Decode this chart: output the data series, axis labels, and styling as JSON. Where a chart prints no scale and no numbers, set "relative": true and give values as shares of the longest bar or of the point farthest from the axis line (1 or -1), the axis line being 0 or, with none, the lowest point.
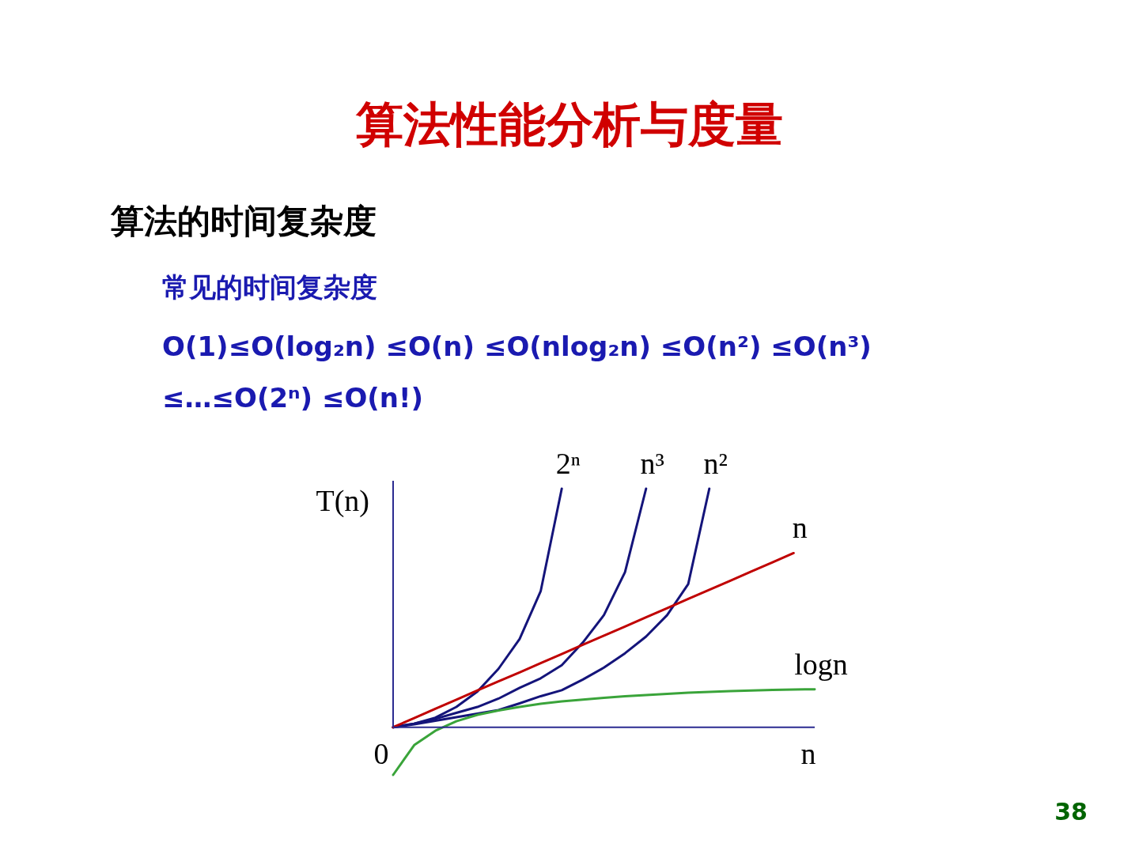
{
  "chart_data": {
    "type": "line",
    "relative": true,
    "title": "算法性能分析与度量",
    "subtitle": "算法的时间复杂度",
    "ylabel": "T(n)",
    "xlabel": "n",
    "legend": false,
    "ref_lines": [
      {
        "axis": "y",
        "value": 0,
        "color": "#2b2b90"
      }
    ],
    "line_style": "solid",
    "annotations": [
      "常见的时间复杂度",
      "O(1)≤O(log₂n) ≤O(n) ≤O(nlog₂n) ≤O(n²) ≤O(n³)",
      "≤…≤O(2ⁿ) ≤O(n!)",
      "0",
      "38"
    ],
    "categories": [
      null,
      null,
      null,
      null,
      null,
      null,
      null,
      null,
      null,
      null,
      null,
      null,
      null,
      null,
      null,
      null,
      null,
      null,
      null,
      null,
      null
    ],
    "series": [
      {
        "name": "2ⁿ",
        "color": "#14147a",
        "values": [
          0,
          0.015,
          0.04,
          0.085,
          0.15,
          0.245,
          0.37,
          0.57,
          1,
          null,
          null,
          null,
          null,
          null,
          null,
          null,
          null,
          null,
          null,
          null,
          null
        ]
      },
      {
        "name": "n³",
        "color": "#14147a",
        "values": [
          0,
          0.015,
          0.035,
          0.06,
          0.085,
          0.12,
          0.165,
          0.205,
          0.26,
          0.355,
          0.47,
          0.65,
          1,
          null,
          null,
          null,
          null,
          null,
          null,
          null,
          null
        ]
      },
      {
        "name": "n²",
        "color": "#14147a",
        "values": [
          0,
          0.012,
          0.027,
          0.042,
          0.057,
          0.072,
          0.1,
          0.13,
          0.155,
          0.2,
          0.25,
          0.31,
          0.38,
          0.47,
          0.6,
          1,
          null,
          null,
          null,
          null,
          null
        ]
      },
      {
        "name": "n",
        "color": "#c00000",
        "values": [
          0,
          0.038,
          0.077,
          0.115,
          0.154,
          0.192,
          0.23,
          0.269,
          0.307,
          0.346,
          0.384,
          0.422,
          0.461,
          0.499,
          0.538,
          0.576,
          0.614,
          0.653,
          0.691,
          0.73,
          null
        ]
      },
      {
        "name": "logn",
        "color": "#3aa43a",
        "values": [
          -0.2,
          -0.075,
          -0.015,
          0.025,
          0.052,
          0.07,
          0.085,
          0.098,
          0.108,
          0.116,
          0.123,
          0.13,
          0.135,
          0.14,
          0.145,
          0.148,
          0.151,
          0.154,
          0.156,
          0.158,
          0.159
        ]
      }
    ]
  }
}
